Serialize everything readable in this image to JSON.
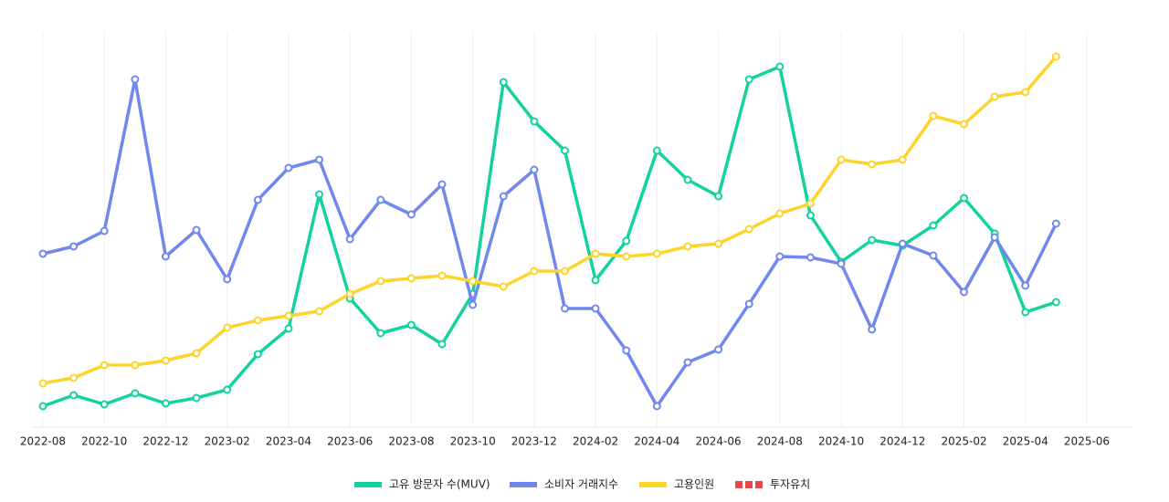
{
  "chart_data": {
    "type": "line",
    "categories": [
      "2022-08",
      null,
      "2022-10",
      null,
      "2022-12",
      null,
      "2023-02",
      null,
      "2023-04",
      null,
      "2023-06",
      null,
      "2023-08",
      null,
      "2023-10",
      null,
      "2023-12",
      null,
      "2024-02",
      null,
      "2024-04",
      null,
      "2024-06",
      null,
      "2024-08",
      null,
      "2024-10",
      null,
      "2024-12",
      null,
      "2025-02",
      null,
      "2025-04",
      null,
      "2025-06"
    ],
    "ylim": [
      0,
      433
    ],
    "grid": true,
    "legend": "bottom",
    "series": [
      {
        "name": "고유 방문자 수(MUV)",
        "color": "#12d39e",
        "values": [
          23,
          35,
          25,
          37,
          26,
          32,
          41,
          80,
          108,
          255,
          141,
          103,
          112,
          91,
          146,
          378,
          335,
          303,
          161,
          204,
          303,
          271,
          253,
          381,
          395,
          232,
          181,
          205,
          199,
          221,
          251,
          212,
          126,
          137,
          null
        ]
      },
      {
        "name": "소비자 거래지수",
        "color": "#7088ee",
        "values": [
          190,
          198,
          215,
          381,
          187,
          216,
          162,
          249,
          284,
          293,
          206,
          249,
          233,
          266,
          134,
          253,
          282,
          130,
          130,
          84,
          23,
          71,
          85,
          135,
          187,
          186,
          179,
          107,
          201,
          188,
          148,
          208,
          155,
          223,
          null
        ]
      },
      {
        "name": "고용인원",
        "color": "#fdd42a",
        "values": [
          48,
          54,
          68,
          68,
          73,
          81,
          109,
          117,
          122,
          127,
          146,
          160,
          163,
          166,
          160,
          154,
          171,
          171,
          190,
          187,
          190,
          198,
          201,
          217,
          234,
          245,
          293,
          288,
          293,
          341,
          332,
          362,
          367,
          406,
          null
        ]
      },
      {
        "name": "투자유치",
        "color": "#e5474b",
        "dashed": true,
        "values": [
          null,
          null,
          null,
          null,
          null,
          null,
          null,
          null,
          null,
          null,
          null,
          null,
          null,
          null,
          null,
          null,
          null,
          null,
          null,
          null,
          null,
          null,
          null,
          null,
          null,
          null,
          null,
          null,
          null,
          null,
          null,
          null,
          null,
          null,
          null
        ]
      }
    ]
  }
}
